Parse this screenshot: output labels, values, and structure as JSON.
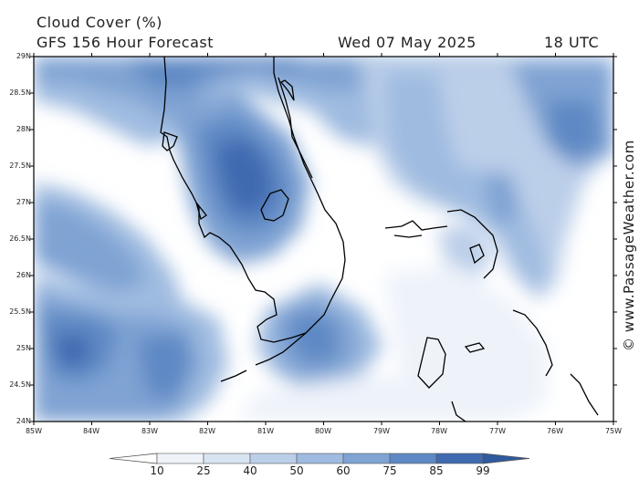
{
  "header": {
    "title": "Cloud Cover (%)",
    "model": "GFS 156 Hour Forecast",
    "date": "Wed 07 May 2025",
    "time": "18 UTC"
  },
  "credit": "© www.PassageWeather.com",
  "lat_labels": [
    "29N",
    "28.5N",
    "28N",
    "27.5N",
    "27N",
    "26.5N",
    "26N",
    "25.5N",
    "25N",
    "24.5N",
    "24N"
  ],
  "lon_labels": [
    "85W",
    "84W",
    "83W",
    "82W",
    "81W",
    "80W",
    "79W",
    "78W",
    "77W",
    "76W",
    "75W"
  ],
  "legend": {
    "ticks": [
      "10",
      "25",
      "40",
      "50",
      "60",
      "75",
      "85",
      "99"
    ],
    "colors": [
      "#ffffff",
      "#eef3fa",
      "#d9e4f2",
      "#bccfe9",
      "#9fbbe0",
      "#7fa3d3",
      "#5f89c4",
      "#3f6ab0"
    ]
  }
}
